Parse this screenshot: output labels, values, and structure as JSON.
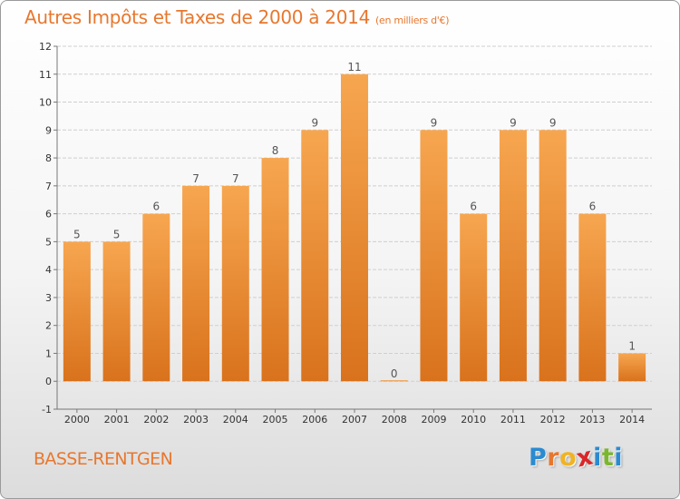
{
  "title": "Autres Impôts et Taxes de 2000 à 2014",
  "subtitle": "(en milliers d'€)",
  "commune": "BASSE-RENTGEN",
  "logo": {
    "text": "Proxiti",
    "letters": [
      {
        "ch": "P",
        "color": "#2a8bd1"
      },
      {
        "ch": "r",
        "color": "#e8772e"
      },
      {
        "ch": "o",
        "color": "#f1b323"
      },
      {
        "ch": "x",
        "color": "#d9262a"
      },
      {
        "ch": "i",
        "color": "#2a8bd1"
      },
      {
        "ch": "t",
        "color": "#7bb631"
      },
      {
        "ch": "i",
        "color": "#2a8bd1"
      }
    ]
  },
  "colors": {
    "bar_light": "#f7a650",
    "bar_dark": "#d9721c",
    "title": "#e8772e",
    "grid": "#cfcfcf"
  },
  "chart_data": {
    "type": "bar",
    "title": "Autres Impôts et Taxes de 2000 à 2014",
    "subtitle": "(en milliers d'€)",
    "categories": [
      "2000",
      "2001",
      "2002",
      "2003",
      "2004",
      "2005",
      "2006",
      "2007",
      "2008",
      "2009",
      "2010",
      "2011",
      "2012",
      "2013",
      "2014"
    ],
    "values": [
      5,
      5,
      6,
      7,
      7,
      8,
      9,
      11,
      0,
      9,
      6,
      9,
      9,
      6,
      1
    ],
    "ylim": [
      -1,
      12
    ],
    "yticks": [
      -1,
      0,
      1,
      2,
      3,
      4,
      5,
      6,
      7,
      8,
      9,
      10,
      11,
      12
    ],
    "grid": true,
    "grid_axis": "y",
    "data_labels": true
  }
}
